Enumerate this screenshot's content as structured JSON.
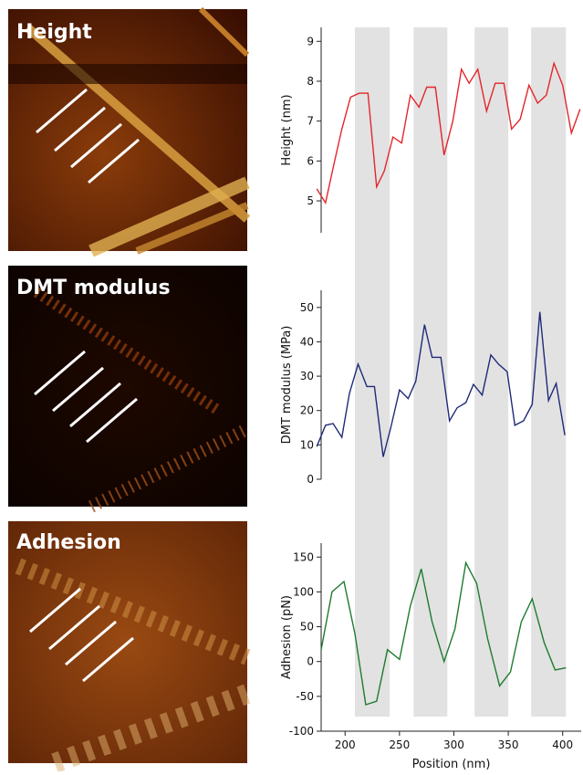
{
  "images": [
    {
      "label": "Height"
    },
    {
      "label": "DMT modulus"
    },
    {
      "label": "Adhesion"
    }
  ],
  "bands": {
    "x_ranges": [
      [
        209,
        241
      ],
      [
        263,
        294
      ],
      [
        319,
        350
      ],
      [
        371,
        403
      ]
    ],
    "color": "#e2e2e2"
  },
  "chart_data": [
    {
      "type": "line",
      "ylabel": "Height (nm)",
      "xlim": [
        178,
        417
      ],
      "ylim": [
        4.2,
        9.35
      ],
      "yticks": [
        5,
        6,
        7,
        8,
        9
      ],
      "x": [
        174,
        182,
        190,
        197,
        205,
        213,
        221,
        229,
        236,
        244,
        252,
        260,
        268,
        275,
        283,
        291,
        299,
        307,
        314,
        322,
        330,
        338,
        346,
        353,
        361,
        369,
        377,
        385,
        392,
        400,
        408,
        416
      ],
      "series": [
        {
          "color": "#e3262c",
          "values": [
            5.3,
            4.95,
            5.95,
            6.8,
            7.6,
            7.7,
            7.7,
            5.35,
            5.75,
            6.6,
            6.45,
            7.65,
            7.35,
            7.85,
            7.85,
            6.15,
            7.0,
            8.3,
            7.95,
            8.3,
            7.25,
            7.95,
            7.95,
            6.8,
            7.05,
            7.9,
            7.45,
            7.65,
            8.45,
            7.9,
            6.7,
            7.3
          ]
        }
      ]
    },
    {
      "type": "line",
      "ylabel": "DMT modulus (MPa)",
      "xlim": [
        178,
        417
      ],
      "ylim": [
        0,
        55
      ],
      "yticks": [
        0,
        10,
        20,
        30,
        40,
        50
      ],
      "x": [
        174,
        182,
        189,
        197,
        204,
        212,
        220,
        227,
        235,
        242,
        250,
        258,
        265,
        273,
        280,
        288,
        296,
        303,
        311,
        318,
        326,
        334,
        341,
        349,
        356,
        364,
        372,
        379,
        387,
        394,
        402
      ],
      "series": [
        {
          "color": "#1f2a78",
          "values": [
            9.5,
            15.7,
            16.2,
            12.2,
            25,
            33.5,
            27,
            27,
            6.5,
            15,
            26,
            23.5,
            28.5,
            45,
            35.5,
            35.5,
            17,
            20.8,
            22.3,
            27.6,
            24.5,
            36.2,
            33.5,
            31.3,
            15.7,
            17,
            21.8,
            48.7,
            22.9,
            27.9,
            12.8
          ]
        }
      ]
    },
    {
      "type": "line",
      "ylabel": "Adhesion (pN)",
      "xlabel": "Position (nm)",
      "xlim": [
        178,
        417
      ],
      "ylim": [
        -100,
        170
      ],
      "yticks": [
        -100,
        -50,
        0,
        50,
        100,
        150
      ],
      "xticks": [
        200,
        250,
        300,
        350,
        400
      ],
      "x": [
        178,
        188,
        199,
        209,
        219,
        229,
        239,
        250,
        260,
        270,
        280,
        291,
        301,
        311,
        321,
        331,
        342,
        352,
        362,
        372,
        383,
        393,
        403
      ],
      "series": [
        {
          "color": "#1e7b2e",
          "values": [
            17,
            100,
            115,
            40,
            -62,
            -57,
            17,
            3,
            80,
            133,
            57,
            0,
            47,
            142,
            112,
            33,
            -35,
            -15,
            57,
            90,
            27,
            -12,
            -9
          ]
        }
      ]
    }
  ]
}
